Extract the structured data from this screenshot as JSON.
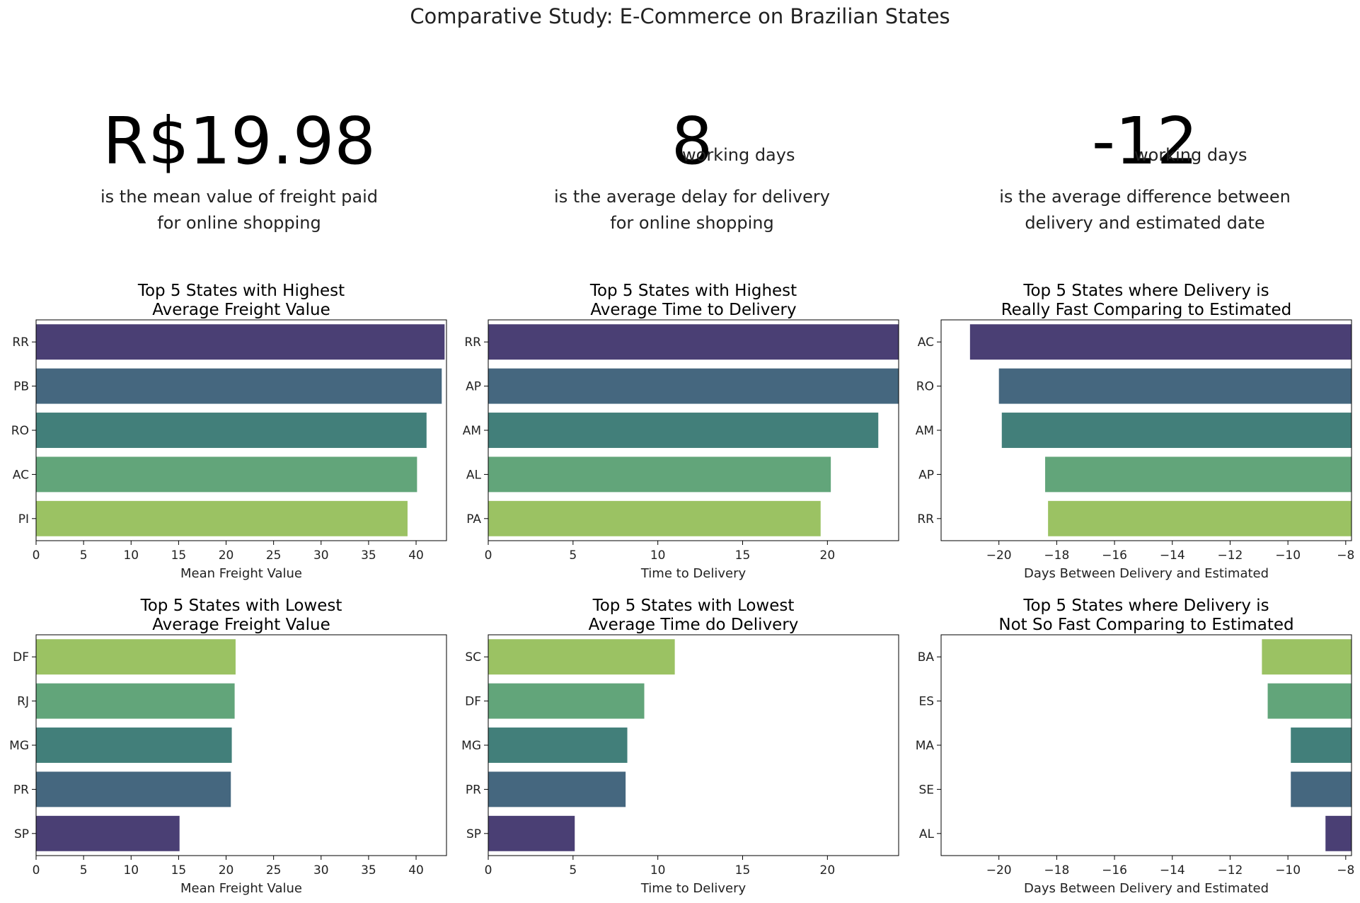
{
  "suptitle": "Comparative Study: E-Commerce on Brazilian States",
  "kpis": [
    {
      "value": "R$19.98",
      "unit": "",
      "desc1": "is the mean value of freight paid",
      "desc2": "for online shopping"
    },
    {
      "value": "8",
      "unit": "working days",
      "desc1": "is the average delay for delivery",
      "desc2": "for online shopping"
    },
    {
      "value": "-12",
      "unit": "working days",
      "desc1": "is the average difference between",
      "desc2": "delivery and estimated date"
    }
  ],
  "palette": [
    "#4a3f74",
    "#45677f",
    "#427f7a",
    "#62a57a",
    "#9bc263"
  ],
  "chart_data": [
    {
      "type": "bar",
      "orientation": "horizontal",
      "title": "Top 5 States with Highest\nAverage Freight Value",
      "xlabel": "Mean Freight Value",
      "categories": [
        "RR",
        "PB",
        "RO",
        "AC",
        "PI"
      ],
      "values": [
        43.0,
        42.7,
        41.1,
        40.1,
        39.1
      ],
      "xlim": [
        0,
        43.2
      ],
      "xticks": [
        0,
        5,
        10,
        15,
        20,
        25,
        30,
        35,
        40
      ],
      "colors": [
        0,
        1,
        2,
        3,
        4
      ]
    },
    {
      "type": "bar",
      "orientation": "horizontal",
      "title": "Top 5 States with Highest\nAverage Time to Delivery",
      "xlabel": "Time to Delivery",
      "categories": [
        "RR",
        "AP",
        "AM",
        "AL",
        "PA"
      ],
      "values": [
        24.3,
        24.2,
        23.0,
        20.2,
        19.6
      ],
      "xlim": [
        0,
        24.2
      ],
      "xticks": [
        0,
        5,
        10,
        15,
        20
      ],
      "colors": [
        0,
        1,
        2,
        3,
        4
      ]
    },
    {
      "type": "bar",
      "orientation": "horizontal",
      "title": "Top 5 States where Delivery is\nReally Fast Comparing to Estimated",
      "xlabel": "Days Between Delivery and Estimated",
      "categories": [
        "AC",
        "RO",
        "AM",
        "AP",
        "RR"
      ],
      "values": [
        -21.0,
        -20.0,
        -19.9,
        -18.4,
        -18.3
      ],
      "xlim": [
        -22.0,
        -7.8
      ],
      "xticks": [
        -20,
        -18,
        -16,
        -14,
        -12,
        -10,
        -8
      ],
      "colors": [
        0,
        1,
        2,
        3,
        4
      ]
    },
    {
      "type": "bar",
      "orientation": "horizontal",
      "title": "Top 5 States with Lowest\nAverage Freight Value",
      "xlabel": "Mean Freight Value",
      "categories": [
        "DF",
        "RJ",
        "MG",
        "PR",
        "SP"
      ],
      "values": [
        21.0,
        20.9,
        20.6,
        20.5,
        15.1
      ],
      "xlim": [
        0,
        43.2
      ],
      "xticks": [
        0,
        5,
        10,
        15,
        20,
        25,
        30,
        35,
        40
      ],
      "colors": [
        4,
        3,
        2,
        1,
        0
      ]
    },
    {
      "type": "bar",
      "orientation": "horizontal",
      "title": "Top 5 States with Lowest\nAverage Time do Delivery",
      "xlabel": "Time to Delivery",
      "categories": [
        "SC",
        "DF",
        "MG",
        "PR",
        "SP"
      ],
      "values": [
        11.0,
        9.2,
        8.2,
        8.1,
        5.1
      ],
      "xlim": [
        0,
        24.2
      ],
      "xticks": [
        0,
        5,
        10,
        15,
        20
      ],
      "colors": [
        4,
        3,
        2,
        1,
        0
      ]
    },
    {
      "type": "bar",
      "orientation": "horizontal",
      "title": "Top 5 States where Delivery is\nNot So Fast Comparing to Estimated",
      "xlabel": "Days Between Delivery and Estimated",
      "categories": [
        "BA",
        "ES",
        "MA",
        "SE",
        "AL"
      ],
      "values": [
        -10.9,
        -10.7,
        -9.9,
        -9.9,
        -8.7
      ],
      "xlim": [
        -22.0,
        -7.8
      ],
      "xticks": [
        -20,
        -18,
        -16,
        -14,
        -12,
        -10,
        -8
      ],
      "colors": [
        4,
        3,
        2,
        1,
        0
      ]
    }
  ]
}
